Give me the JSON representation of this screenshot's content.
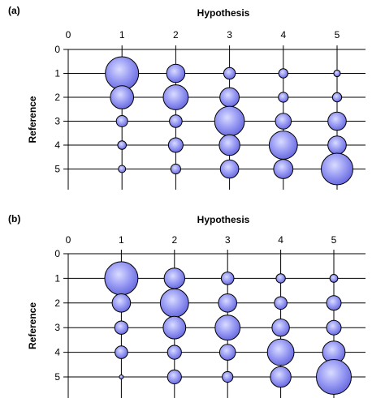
{
  "colors": {
    "bubble_center": "#d9dcff",
    "bubble_mid": "#9a9cf4",
    "bubble_edge": "#6a6ce0",
    "bubble_stroke": "#000000",
    "line": "#000000"
  },
  "chart_data": [
    {
      "type": "bubble",
      "panel_label": "(a)",
      "xlabel": "Hypothesis",
      "ylabel": "Reference",
      "x_ticks": [
        "0",
        "1",
        "2",
        "3",
        "4",
        "5"
      ],
      "y_ticks": [
        "0",
        "1",
        "2",
        "3",
        "4",
        "5"
      ],
      "x_axis_position": "top",
      "xlim": [
        0,
        5.5
      ],
      "ylim": [
        0,
        6
      ],
      "grid": "horizontal",
      "points": [
        {
          "x": 1,
          "y": 1,
          "size": 1.0
        },
        {
          "x": 2,
          "y": 1,
          "size": 0.55
        },
        {
          "x": 3,
          "y": 1,
          "size": 0.35
        },
        {
          "x": 4,
          "y": 1,
          "size": 0.28
        },
        {
          "x": 5,
          "y": 1,
          "size": 0.2
        },
        {
          "x": 1,
          "y": 2,
          "size": 0.7
        },
        {
          "x": 2,
          "y": 2,
          "size": 0.75
        },
        {
          "x": 3,
          "y": 2,
          "size": 0.58
        },
        {
          "x": 4,
          "y": 2,
          "size": 0.3
        },
        {
          "x": 5,
          "y": 2,
          "size": 0.28
        },
        {
          "x": 1,
          "y": 3,
          "size": 0.34
        },
        {
          "x": 2,
          "y": 3,
          "size": 0.38
        },
        {
          "x": 3,
          "y": 3,
          "size": 0.9
        },
        {
          "x": 4,
          "y": 3,
          "size": 0.48
        },
        {
          "x": 5,
          "y": 3,
          "size": 0.55
        },
        {
          "x": 1,
          "y": 4,
          "size": 0.26
        },
        {
          "x": 2,
          "y": 4,
          "size": 0.44
        },
        {
          "x": 3,
          "y": 4,
          "size": 0.62
        },
        {
          "x": 4,
          "y": 4,
          "size": 0.85
        },
        {
          "x": 5,
          "y": 4,
          "size": 0.55
        },
        {
          "x": 1,
          "y": 5,
          "size": 0.22
        },
        {
          "x": 2,
          "y": 5,
          "size": 0.3
        },
        {
          "x": 3,
          "y": 5,
          "size": 0.55
        },
        {
          "x": 4,
          "y": 5,
          "size": 0.58
        },
        {
          "x": 5,
          "y": 5,
          "size": 0.95
        }
      ]
    },
    {
      "type": "bubble",
      "panel_label": "(b)",
      "xlabel": "Hypothesis",
      "ylabel": "Reference",
      "x_ticks": [
        "0",
        "1",
        "2",
        "3",
        "4",
        "5"
      ],
      "y_ticks": [
        "0",
        "1",
        "2",
        "3",
        "4",
        "5"
      ],
      "x_axis_position": "top",
      "xlim": [
        0,
        5.5
      ],
      "ylim": [
        0,
        6
      ],
      "grid": "horizontal",
      "points": [
        {
          "x": 1,
          "y": 1,
          "size": 1.0
        },
        {
          "x": 2,
          "y": 1,
          "size": 0.62
        },
        {
          "x": 3,
          "y": 1,
          "size": 0.38
        },
        {
          "x": 4,
          "y": 1,
          "size": 0.28
        },
        {
          "x": 5,
          "y": 1,
          "size": 0.24
        },
        {
          "x": 1,
          "y": 2,
          "size": 0.55
        },
        {
          "x": 2,
          "y": 2,
          "size": 0.85
        },
        {
          "x": 3,
          "y": 2,
          "size": 0.55
        },
        {
          "x": 4,
          "y": 2,
          "size": 0.38
        },
        {
          "x": 5,
          "y": 2,
          "size": 0.44
        },
        {
          "x": 1,
          "y": 3,
          "size": 0.4
        },
        {
          "x": 2,
          "y": 3,
          "size": 0.68
        },
        {
          "x": 3,
          "y": 3,
          "size": 0.75
        },
        {
          "x": 4,
          "y": 3,
          "size": 0.52
        },
        {
          "x": 5,
          "y": 3,
          "size": 0.44
        },
        {
          "x": 1,
          "y": 4,
          "size": 0.38
        },
        {
          "x": 2,
          "y": 4,
          "size": 0.42
        },
        {
          "x": 3,
          "y": 4,
          "size": 0.48
        },
        {
          "x": 4,
          "y": 4,
          "size": 0.8
        },
        {
          "x": 5,
          "y": 4,
          "size": 0.68
        },
        {
          "x": 1,
          "y": 5,
          "size": 0.12
        },
        {
          "x": 2,
          "y": 5,
          "size": 0.42
        },
        {
          "x": 3,
          "y": 5,
          "size": 0.32
        },
        {
          "x": 4,
          "y": 5,
          "size": 0.62
        },
        {
          "x": 5,
          "y": 5,
          "size": 1.05
        }
      ]
    }
  ]
}
